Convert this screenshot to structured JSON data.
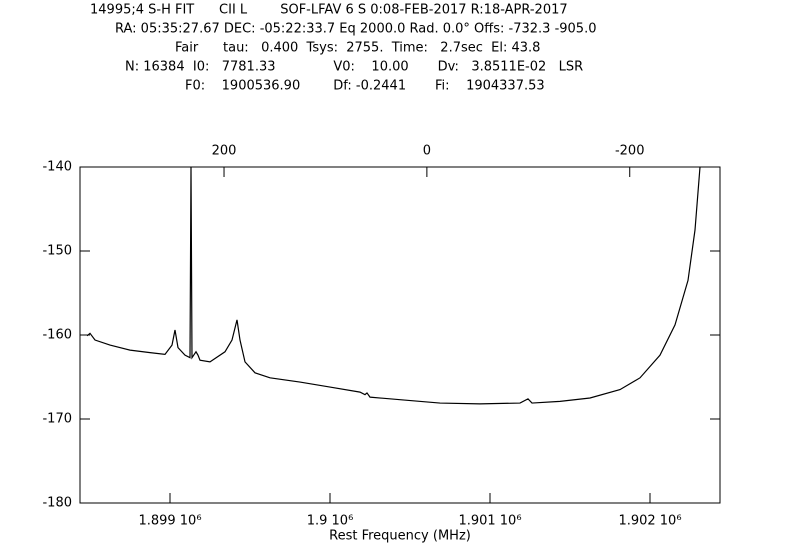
{
  "header": {
    "lines": [
      "14995;4 S-H FIT      CII L        SOF-LFAV 6 S 0:08-FEB-2017 R:18-APR-2017",
      "RA: 05:35:27.67 DEC: -05:22:33.7 Eq 2000.0 Rad. 0.0° Offs: -732.3 -905.0",
      "Fair      tau:   0.400  Tsys:  2755.  Time:   2.7sec  El: 43.8",
      "N: 16384  I0:   7781.33              V0:    10.00       Dv:   3.8511E-02   LSR",
      "F0:    1900536.90        Df: -0.2441       Fi:    1904337.53"
    ]
  },
  "chart_data": {
    "type": "line",
    "xlabel": "Rest Frequency (MHz)",
    "color": "#000000",
    "xlim": [
      1898437.5,
      1902437.5
    ],
    "xticks": [
      {
        "value": 1899000,
        "label": "1.899 10⁶"
      },
      {
        "value": 1900000,
        "label": "1.9 10⁶"
      },
      {
        "value": 1901000,
        "label": "1.901 10⁶"
      },
      {
        "value": 1902000,
        "label": "1.902 10⁶"
      }
    ],
    "x2lim": [
      342,
      -289
    ],
    "x2ticks": [
      200,
      0,
      -200
    ],
    "ylim": [
      -180,
      -140
    ],
    "yticks": [
      -180,
      -170,
      -160,
      -150,
      -140
    ],
    "x": [
      1898481.25,
      1898500,
      1898531.25,
      1898625,
      1898750,
      1898875,
      1898968.75,
      1899012.5,
      1899031.25,
      1899050,
      1899093.75,
      1899125,
      1899131.25,
      1899137.5,
      1899162.5,
      1899175,
      1899187.5,
      1899250,
      1899343.75,
      1899387.5,
      1899418.75,
      1899437.5,
      1899468.75,
      1899531.25,
      1899625,
      1899812.5,
      1900000,
      1900187.5,
      1900218.75,
      1900231.25,
      1900250,
      1900437.5,
      1900687.5,
      1900937.5,
      1901187.5,
      1901237.5,
      1901262.5,
      1901437.5,
      1901625,
      1901812.5,
      1901937.5,
      1902062.5,
      1902156.25,
      1902237.5,
      1902281.25,
      1902312.5
    ],
    "values": [
      -160.1,
      -159.8,
      -160.6,
      -161.2,
      -161.8,
      -162.1,
      -162.3,
      -161.2,
      -159.4,
      -161.5,
      -162.4,
      -162.7,
      -140,
      -162.7,
      -162.0,
      -162.4,
      -163.0,
      -163.2,
      -162.0,
      -160.6,
      -158.2,
      -160.6,
      -163.2,
      -164.5,
      -165.1,
      -165.6,
      -166.2,
      -166.8,
      -167.1,
      -166.9,
      -167.4,
      -167.7,
      -168.1,
      -168.2,
      -168.1,
      -167.6,
      -168.1,
      -167.9,
      -167.5,
      -166.5,
      -165.1,
      -162.4,
      -158.8,
      -153.5,
      -147.5,
      -140
    ]
  }
}
